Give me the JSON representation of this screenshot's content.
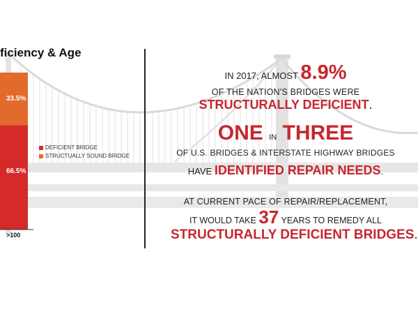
{
  "chart_data": {
    "type": "bar",
    "title": "ficiency & Age",
    "categories": [
      ">100"
    ],
    "series": [
      {
        "name": "DEFICIENT BRIDGE",
        "values": [
          66.5
        ],
        "color": "#d42a2a"
      },
      {
        "name": "STRUCTUALLY SOUND BRIDGE",
        "values": [
          33.5
        ],
        "color": "#e26a2c"
      }
    ],
    "value_labels": [
      "66.5%",
      "33.5%"
    ],
    "ylim": [
      0,
      100
    ],
    "stacked": true,
    "legend_position": "right"
  },
  "facts": {
    "line1_pre": "IN 2017, ALMOST",
    "line1_num": "8.9%",
    "line2": "OF THE NATION'S BRIDGES WERE",
    "line3": "STRUCTURALLY DEFICIENT",
    "line3_end": ".",
    "line4_a": "ONE",
    "line4_b": "IN",
    "line4_c": "THREE",
    "line5": "OF U.S. BRIDGES & INTERSTATE HIGHWAY BRIDGES",
    "line6_pre": "HAVE",
    "line6_red": "IDENTIFIED REPAIR NEEDS",
    "line6_end": ".",
    "line7": "AT CURRENT PACE OF REPAIR/REPLACEMENT,",
    "line8_pre": "IT WOULD TAKE",
    "line8_num": "37",
    "line8_post": "YEARS TO REMEDY ALL",
    "line9": "STRUCTURALLY DEFICIENT BRIDGES",
    "line9_end": "."
  }
}
